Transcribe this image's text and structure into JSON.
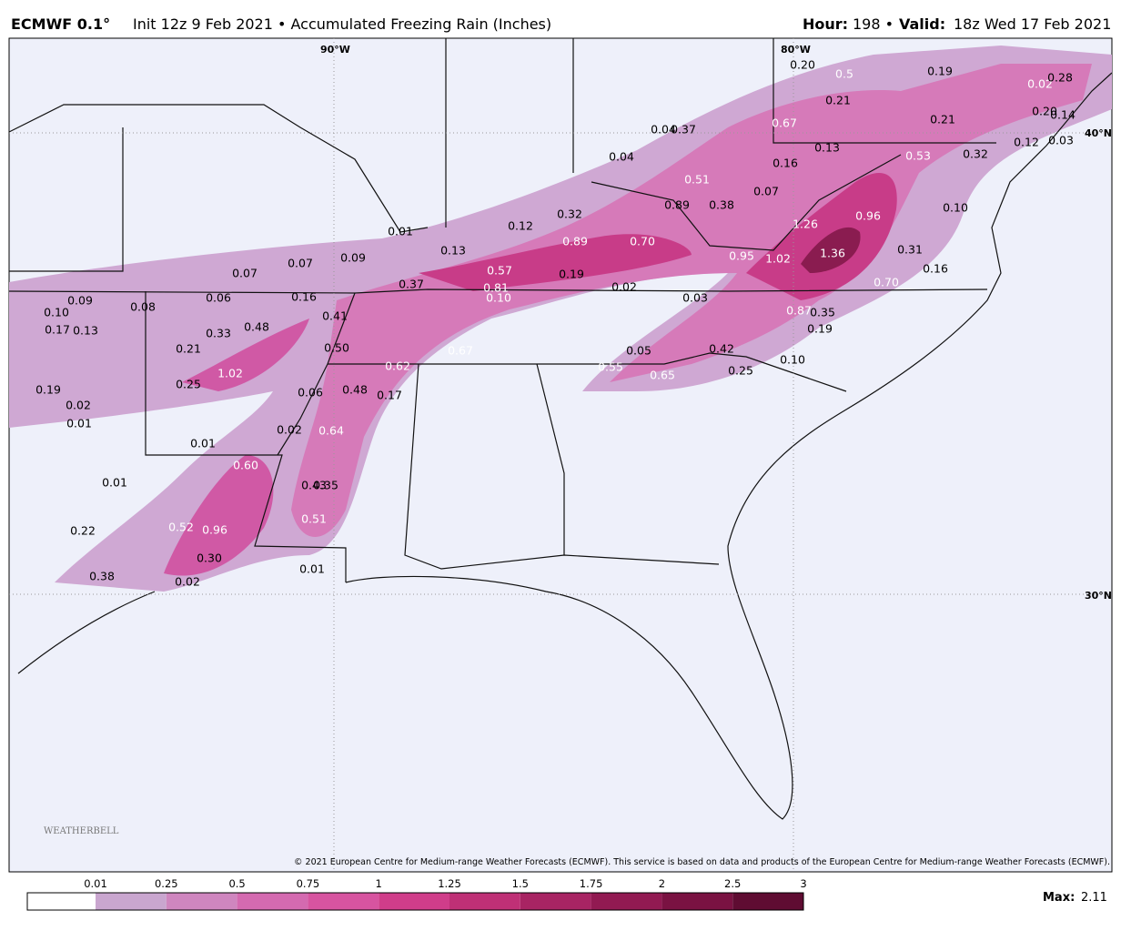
{
  "header": {
    "model": "ECMWF 0.1°",
    "subtitle": "Init 12z 9 Feb 2021 • Accumulated Freezing Rain (Inches)",
    "hour_label": "Hour:",
    "hour": "198 •",
    "valid_label": "Valid:",
    "valid": "18z Wed 17 Feb 2021"
  },
  "map": {
    "longitude_labels": [
      "90°W",
      "80°W"
    ],
    "latitude_labels": [
      "40°N",
      "30°N"
    ],
    "point_labels": [
      "0.20",
      "0.5",
      "0.19",
      "0.21",
      "0.02",
      "0.28",
      "0.67",
      "0.21",
      "0.20",
      "0.14",
      "0.04",
      "0.37",
      "0.13",
      "0.16",
      "0.53",
      "0.32",
      "0.12",
      "0.03",
      "0.04",
      "0.51",
      "0.07",
      "0.89",
      "0.38",
      "0.96",
      "0.32",
      "0.12",
      "1.26",
      "0.10",
      "0.01",
      "0.89",
      "0.70",
      "0.13",
      "0.95",
      "1.02",
      "1.36",
      "0.31",
      "0.07",
      "0.07",
      "0.09",
      "0.57",
      "0.19",
      "0.16",
      "0.70",
      "0.37",
      "0.02",
      "0.81",
      "0.10",
      "0.06",
      "0.16",
      "0.03",
      "0.09",
      "0.08",
      "0.10",
      "0.87",
      "0.35",
      "0.41",
      "0.17",
      "0.13",
      "0.33",
      "0.48",
      "0.19",
      "0.50",
      "0.67",
      "0.05",
      "0.42",
      "0.21",
      "0.10",
      "0.62",
      "0.55",
      "0.65",
      "0.25",
      "1.02",
      "0.25",
      "0.19",
      "0.48",
      "0.17",
      "0.06",
      "0.02",
      "0.01",
      "0.02",
      "0.64",
      "0.01",
      "0.60",
      "0.01",
      "0.43",
      "0.35",
      "0.52",
      "0.96",
      "0.51",
      "0.22",
      "0.30",
      "0.38",
      "0.02",
      "0.01"
    ],
    "copyright": "© 2021 European Centre for Medium-range Weather Forecasts (ECMWF). This service is based on data and products of the European Centre for Medium-range Weather Forecasts (ECMWF).",
    "logo": "WEATHERBELL"
  },
  "legend": {
    "ticks": [
      "0.01",
      "0.25",
      "0.5",
      "0.75",
      "1",
      "1.25",
      "1.5",
      "1.75",
      "2",
      "2.5",
      "3"
    ],
    "colors": [
      "#ffffff",
      "#c9a6cf",
      "#cf86bf",
      "#d46ab0",
      "#d754a0",
      "#d03d8a",
      "#bf3076",
      "#a82463",
      "#921a52",
      "#7a1242",
      "#5f0c32"
    ],
    "max_label": "Max:",
    "max": "2.11"
  }
}
